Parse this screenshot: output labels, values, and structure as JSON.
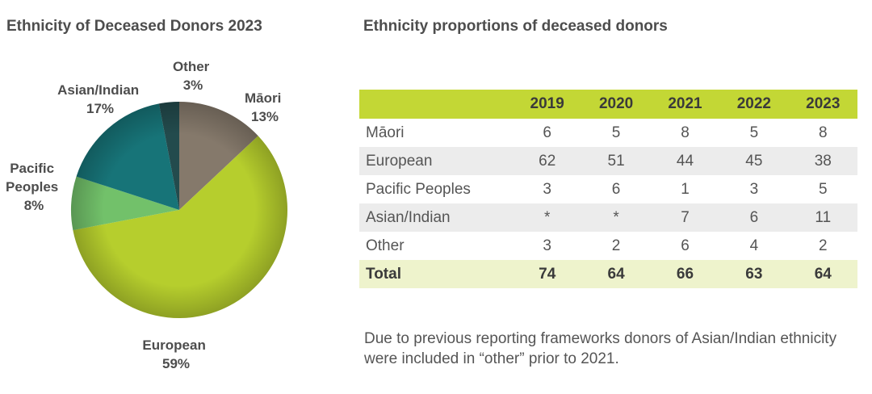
{
  "colors": {
    "maori": "#85796b",
    "european": "#b6ce2d",
    "pacific": "#72c16a",
    "asian": "#177478",
    "other": "#234b4d",
    "header": "#c3d735"
  },
  "chart_data": [
    {
      "type": "pie",
      "title": "Ethnicity of Deceased Donors 2023",
      "series": [
        {
          "name": "Māori",
          "value": 13,
          "label": "13%"
        },
        {
          "name": "European",
          "value": 59,
          "label": "59%"
        },
        {
          "name": "Pacific Peoples",
          "value": 8,
          "label": "8%"
        },
        {
          "name": "Asian/Indian",
          "value": 17,
          "label": "17%"
        },
        {
          "name": "Other",
          "value": 3,
          "label": "3%"
        }
      ]
    },
    {
      "type": "table",
      "title": "Ethnicity proportions of deceased donors",
      "columns": [
        "",
        "2019",
        "2020",
        "2021",
        "2022",
        "2023"
      ],
      "rows": [
        {
          "name": "Māori",
          "values": [
            "6",
            "5",
            "8",
            "5",
            "8"
          ]
        },
        {
          "name": "European",
          "values": [
            "62",
            "51",
            "44",
            "45",
            "38"
          ]
        },
        {
          "name": "Pacific Peoples",
          "values": [
            "3",
            "6",
            "1",
            "3",
            "5"
          ]
        },
        {
          "name": "Asian/Indian",
          "values": [
            "*",
            "*",
            "7",
            "6",
            "11"
          ]
        },
        {
          "name": "Other",
          "values": [
            "3",
            "2",
            "6",
            "4",
            "2"
          ]
        },
        {
          "name": "Total",
          "values": [
            "74",
            "64",
            "66",
            "63",
            "64"
          ]
        }
      ]
    }
  ],
  "pie_labels": {
    "other": [
      "Other",
      "3%"
    ],
    "maori": [
      "Māori",
      "13%"
    ],
    "asian": [
      "Asian/Indian",
      "17%"
    ],
    "pacific": [
      "Pacific",
      "Peoples",
      "8%"
    ],
    "european": [
      "European",
      "59%"
    ]
  },
  "note": "Due to previous reporting frameworks donors of Asian/Indian ethnicity were included in “other” prior to 2021."
}
